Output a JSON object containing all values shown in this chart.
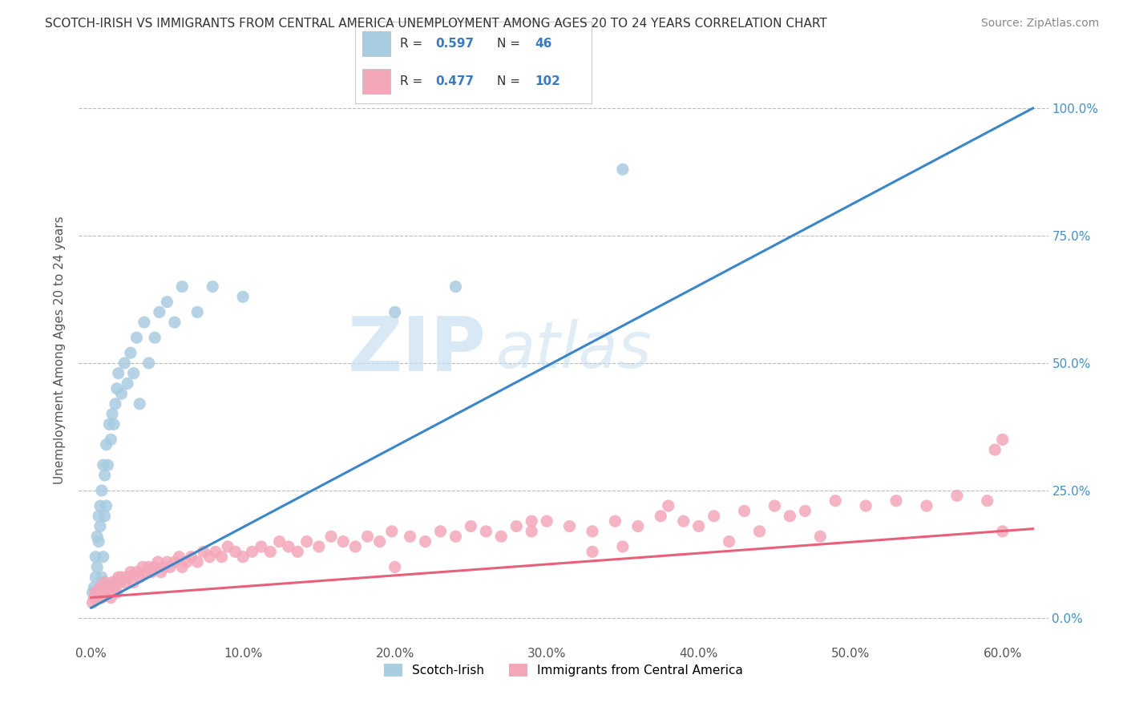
{
  "title": "SCOTCH-IRISH VS IMMIGRANTS FROM CENTRAL AMERICA UNEMPLOYMENT AMONG AGES 20 TO 24 YEARS CORRELATION CHART",
  "source": "Source: ZipAtlas.com",
  "ylabel": "Unemployment Among Ages 20 to 24 years",
  "xticklabels": [
    "0.0%",
    "10.0%",
    "20.0%",
    "30.0%",
    "40.0%",
    "50.0%",
    "60.0%"
  ],
  "xtick_values": [
    0.0,
    0.1,
    0.2,
    0.3,
    0.4,
    0.5,
    0.6
  ],
  "yticklabels_right": [
    "0.0%",
    "25.0%",
    "50.0%",
    "75.0%",
    "100.0%"
  ],
  "ytick_values": [
    0.0,
    0.25,
    0.5,
    0.75,
    1.0
  ],
  "xlim": [
    -0.008,
    0.63
  ],
  "ylim": [
    -0.05,
    1.1
  ],
  "blue_color": "#a8cce0",
  "pink_color": "#f4a7b9",
  "blue_line_color": "#3a86c8",
  "pink_line_color": "#e8607a",
  "watermark_zip": "ZIP",
  "watermark_atlas": "atlas",
  "legend_label_blue": "Scotch-Irish",
  "legend_label_pink": "Immigrants from Central America",
  "grid_color": "#bbbbbb",
  "bg_color": "#ffffff",
  "blue_line_x0": 0.0,
  "blue_line_y0": 0.02,
  "blue_line_x1": 0.62,
  "blue_line_y1": 1.0,
  "pink_line_x0": 0.0,
  "pink_line_y0": 0.04,
  "pink_line_x1": 0.62,
  "pink_line_y1": 0.175,
  "blue_scatter_x": [
    0.001,
    0.002,
    0.003,
    0.003,
    0.004,
    0.004,
    0.005,
    0.005,
    0.006,
    0.006,
    0.007,
    0.007,
    0.008,
    0.008,
    0.009,
    0.009,
    0.01,
    0.01,
    0.011,
    0.012,
    0.013,
    0.014,
    0.015,
    0.016,
    0.017,
    0.018,
    0.02,
    0.022,
    0.024,
    0.026,
    0.028,
    0.03,
    0.032,
    0.035,
    0.038,
    0.042,
    0.045,
    0.05,
    0.055,
    0.06,
    0.07,
    0.08,
    0.1,
    0.2,
    0.24,
    0.35
  ],
  "blue_scatter_y": [
    0.05,
    0.06,
    0.08,
    0.12,
    0.1,
    0.16,
    0.15,
    0.2,
    0.18,
    0.22,
    0.08,
    0.25,
    0.12,
    0.3,
    0.2,
    0.28,
    0.22,
    0.34,
    0.3,
    0.38,
    0.35,
    0.4,
    0.38,
    0.42,
    0.45,
    0.48,
    0.44,
    0.5,
    0.46,
    0.52,
    0.48,
    0.55,
    0.42,
    0.58,
    0.5,
    0.55,
    0.6,
    0.62,
    0.58,
    0.65,
    0.6,
    0.65,
    0.63,
    0.6,
    0.65,
    0.88
  ],
  "pink_scatter_x": [
    0.001,
    0.002,
    0.003,
    0.004,
    0.005,
    0.006,
    0.007,
    0.008,
    0.009,
    0.01,
    0.011,
    0.012,
    0.013,
    0.014,
    0.015,
    0.016,
    0.017,
    0.018,
    0.019,
    0.02,
    0.022,
    0.024,
    0.026,
    0.028,
    0.03,
    0.032,
    0.034,
    0.036,
    0.038,
    0.04,
    0.042,
    0.044,
    0.046,
    0.048,
    0.05,
    0.052,
    0.055,
    0.058,
    0.06,
    0.063,
    0.066,
    0.07,
    0.074,
    0.078,
    0.082,
    0.086,
    0.09,
    0.095,
    0.1,
    0.106,
    0.112,
    0.118,
    0.124,
    0.13,
    0.136,
    0.142,
    0.15,
    0.158,
    0.166,
    0.174,
    0.182,
    0.19,
    0.198,
    0.21,
    0.22,
    0.23,
    0.24,
    0.25,
    0.26,
    0.27,
    0.28,
    0.29,
    0.3,
    0.315,
    0.33,
    0.345,
    0.36,
    0.375,
    0.39,
    0.41,
    0.43,
    0.45,
    0.47,
    0.49,
    0.51,
    0.53,
    0.55,
    0.57,
    0.59,
    0.6,
    0.2,
    0.38,
    0.42,
    0.48,
    0.33,
    0.29,
    0.35,
    0.44,
    0.4,
    0.46,
    0.6,
    0.595
  ],
  "pink_scatter_y": [
    0.03,
    0.04,
    0.05,
    0.04,
    0.05,
    0.06,
    0.04,
    0.05,
    0.07,
    0.06,
    0.05,
    0.06,
    0.04,
    0.07,
    0.06,
    0.07,
    0.05,
    0.08,
    0.07,
    0.08,
    0.07,
    0.08,
    0.09,
    0.07,
    0.09,
    0.08,
    0.1,
    0.09,
    0.1,
    0.09,
    0.1,
    0.11,
    0.09,
    0.1,
    0.11,
    0.1,
    0.11,
    0.12,
    0.1,
    0.11,
    0.12,
    0.11,
    0.13,
    0.12,
    0.13,
    0.12,
    0.14,
    0.13,
    0.12,
    0.13,
    0.14,
    0.13,
    0.15,
    0.14,
    0.13,
    0.15,
    0.14,
    0.16,
    0.15,
    0.14,
    0.16,
    0.15,
    0.17,
    0.16,
    0.15,
    0.17,
    0.16,
    0.18,
    0.17,
    0.16,
    0.18,
    0.17,
    0.19,
    0.18,
    0.17,
    0.19,
    0.18,
    0.2,
    0.19,
    0.2,
    0.21,
    0.22,
    0.21,
    0.23,
    0.22,
    0.23,
    0.22,
    0.24,
    0.23,
    0.17,
    0.1,
    0.22,
    0.15,
    0.16,
    0.13,
    0.19,
    0.14,
    0.17,
    0.18,
    0.2,
    0.35,
    0.33
  ]
}
